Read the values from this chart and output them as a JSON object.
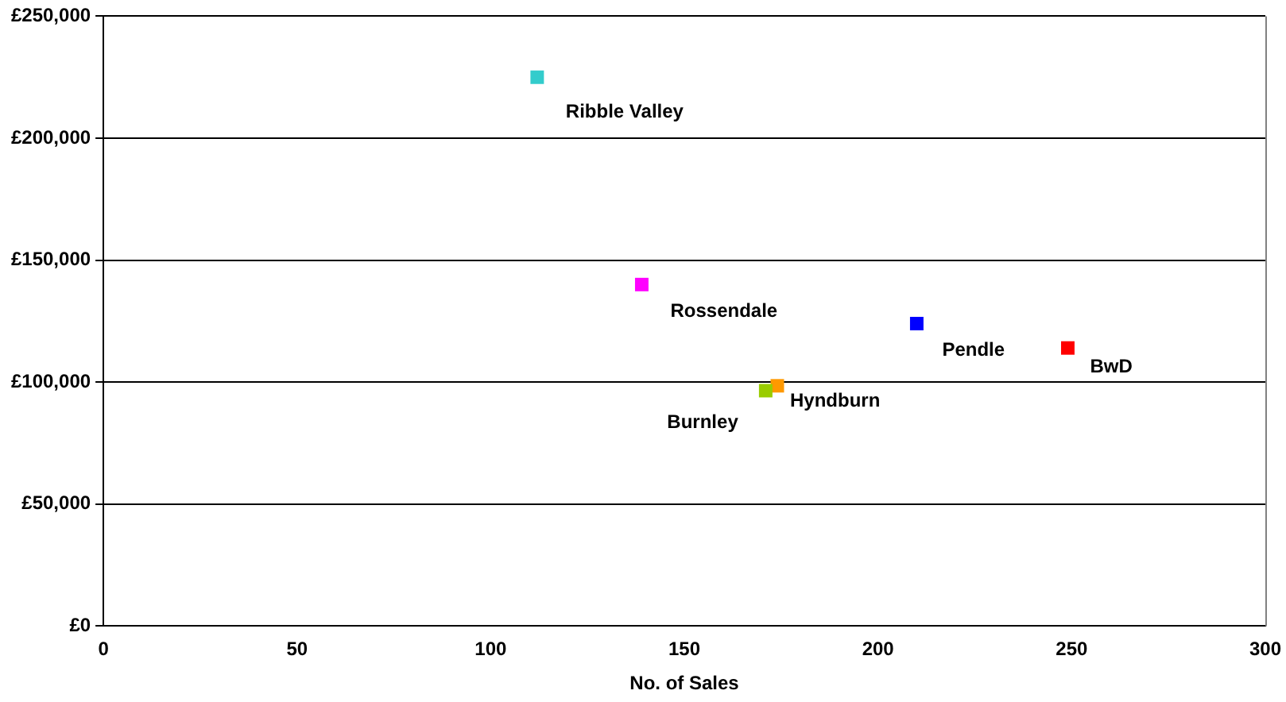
{
  "chart_data": {
    "type": "scatter",
    "xlabel": "No. of Sales",
    "series": [
      {
        "name": "Ribble Valley",
        "color": "#33cccc",
        "x": [
          112
        ],
        "values": [
          225000
        ]
      },
      {
        "name": "Rossendale",
        "color": "#ff00ff",
        "x": [
          139
        ],
        "values": [
          140000
        ]
      },
      {
        "name": "Pendle",
        "color": "#0000ff",
        "x": [
          210
        ],
        "values": [
          124000
        ]
      },
      {
        "name": "BwD",
        "color": "#ff0000",
        "x": [
          249
        ],
        "values": [
          114000
        ]
      },
      {
        "name": "Burnley",
        "color": "#99cc00",
        "x": [
          171
        ],
        "values": [
          96500
        ]
      },
      {
        "name": "Hyndburn",
        "color": "#ff9900",
        "x": [
          174
        ],
        "values": [
          98500
        ]
      }
    ],
    "xlim": [
      0,
      300
    ],
    "xticks": [
      0,
      50,
      100,
      150,
      200,
      250,
      300
    ],
    "ylim": [
      0,
      250000
    ],
    "yticks": [
      {
        "value": 0,
        "label": "£0"
      },
      {
        "value": 50000,
        "label": "£50,000"
      },
      {
        "value": 100000,
        "label": "£100,000"
      },
      {
        "value": 150000,
        "label": "£150,000"
      },
      {
        "value": 200000,
        "label": "£200,000"
      },
      {
        "value": 250000,
        "label": "£250,000"
      }
    ],
    "grid": "y",
    "legend": false,
    "marker": "square"
  }
}
